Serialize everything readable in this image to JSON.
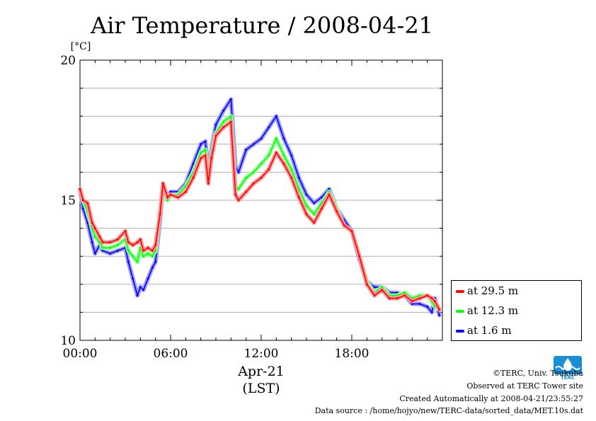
{
  "chart_data": {
    "type": "line",
    "title": "Air Temperature / 2008-04-21",
    "ylabel": "[°C]",
    "xlabel": "Apr-21",
    "xlabel2": "(LST)",
    "xlim": [
      0,
      24
    ],
    "ylim": [
      10,
      20
    ],
    "yticks": [
      10,
      15,
      20
    ],
    "ytick_labels": [
      "10",
      "15",
      "20"
    ],
    "xticks": [
      0,
      6,
      12,
      18
    ],
    "xtick_labels": [
      "00:00",
      "06:00",
      "12:00",
      "18:00"
    ],
    "grid": true,
    "legend_placement": "outside-right-bottom",
    "series": [
      {
        "name": "at 29.5 m",
        "color": "#ff0000",
        "x": [
          0,
          0.2,
          0.5,
          0.8,
          1.0,
          1.3,
          1.5,
          2.0,
          2.5,
          3.0,
          3.2,
          3.5,
          3.8,
          4.0,
          4.2,
          4.5,
          4.8,
          5.0,
          5.3,
          5.5,
          5.8,
          6.0,
          6.5,
          7.0,
          7.5,
          8.0,
          8.3,
          8.5,
          8.7,
          9.0,
          9.5,
          10.0,
          10.3,
          10.5,
          11.0,
          11.5,
          12.0,
          12.5,
          13.0,
          13.5,
          14.0,
          14.5,
          15.0,
          15.5,
          16.0,
          16.5,
          17.0,
          17.5,
          18.0,
          18.5,
          19.0,
          19.5,
          20.0,
          20.5,
          21.0,
          21.5,
          22.0,
          22.5,
          23.0,
          23.3,
          23.5,
          23.8
        ],
        "values": [
          15.4,
          15.0,
          14.9,
          14.2,
          14.0,
          13.7,
          13.5,
          13.5,
          13.6,
          13.9,
          13.5,
          13.4,
          13.5,
          13.6,
          13.2,
          13.3,
          13.2,
          13.4,
          14.5,
          15.6,
          15.1,
          15.2,
          15.1,
          15.3,
          15.8,
          16.5,
          16.6,
          15.6,
          16.5,
          17.3,
          17.6,
          17.8,
          15.2,
          15.0,
          15.3,
          15.6,
          15.8,
          16.1,
          16.7,
          16.3,
          15.8,
          15.1,
          14.5,
          14.2,
          14.7,
          15.2,
          14.6,
          14.1,
          13.9,
          13.0,
          12.0,
          11.6,
          11.8,
          11.5,
          11.5,
          11.6,
          11.4,
          11.5,
          11.6,
          11.5,
          11.4,
          11.1
        ]
      },
      {
        "name": "at 12.3 m",
        "color": "#00ff00",
        "x": [
          0,
          0.2,
          0.5,
          0.8,
          1.0,
          1.3,
          1.5,
          2.0,
          2.5,
          3.0,
          3.2,
          3.5,
          3.8,
          4.0,
          4.2,
          4.5,
          4.8,
          5.0,
          5.3,
          5.5,
          5.8,
          6.0,
          6.5,
          7.0,
          7.5,
          8.0,
          8.3,
          8.5,
          8.7,
          9.0,
          9.5,
          10.0,
          10.3,
          10.5,
          11.0,
          11.5,
          12.0,
          12.5,
          13.0,
          13.5,
          14.0,
          14.5,
          15.0,
          15.5,
          16.0,
          16.5,
          17.0,
          17.5,
          18.0,
          18.5,
          19.0,
          19.5,
          20.0,
          20.5,
          21.0,
          21.5,
          22.0,
          22.5,
          23.0,
          23.3,
          23.5,
          23.8
        ],
        "values": [
          15.4,
          15.0,
          14.6,
          14.0,
          13.7,
          13.5,
          13.3,
          13.3,
          13.4,
          13.6,
          13.2,
          13.0,
          12.8,
          13.3,
          13.0,
          13.1,
          13.0,
          13.2,
          14.5,
          15.5,
          15.0,
          15.2,
          15.2,
          15.5,
          16.0,
          16.7,
          16.8,
          15.7,
          16.6,
          17.4,
          17.8,
          18.0,
          15.5,
          15.4,
          15.8,
          16.0,
          16.3,
          16.6,
          17.2,
          16.6,
          16.1,
          15.4,
          14.8,
          14.5,
          14.9,
          15.3,
          14.7,
          14.1,
          13.9,
          13.0,
          12.1,
          11.7,
          11.9,
          11.6,
          11.6,
          11.7,
          11.5,
          11.6,
          11.6,
          11.4,
          11.2,
          11.1
        ]
      },
      {
        "name": "at 1.6 m",
        "color": "#0000ff",
        "x": [
          0,
          0.2,
          0.5,
          0.8,
          1.0,
          1.3,
          1.5,
          2.0,
          2.5,
          3.0,
          3.2,
          3.5,
          3.8,
          4.0,
          4.2,
          4.5,
          4.8,
          5.0,
          5.3,
          5.5,
          5.8,
          6.0,
          6.5,
          7.0,
          7.5,
          8.0,
          8.3,
          8.5,
          8.7,
          9.0,
          9.5,
          10.0,
          10.3,
          10.5,
          11.0,
          11.5,
          12.0,
          12.5,
          13.0,
          13.5,
          14.0,
          14.5,
          15.0,
          15.5,
          16.0,
          16.5,
          17.0,
          17.5,
          18.0,
          18.5,
          19.0,
          19.5,
          20.0,
          20.5,
          21.0,
          21.5,
          22.0,
          22.5,
          23.0,
          23.3,
          23.5,
          23.8
        ],
        "values": [
          15.4,
          14.7,
          14.2,
          13.5,
          13.1,
          13.4,
          13.2,
          13.1,
          13.2,
          13.3,
          12.8,
          12.2,
          11.6,
          11.9,
          11.8,
          12.2,
          12.6,
          12.8,
          14.3,
          15.5,
          15.0,
          15.3,
          15.3,
          15.6,
          16.3,
          17.0,
          17.1,
          16.0,
          16.8,
          17.7,
          18.2,
          18.6,
          16.2,
          16.0,
          16.8,
          17.0,
          17.2,
          17.6,
          18.0,
          17.2,
          16.6,
          15.8,
          15.2,
          14.9,
          15.1,
          15.4,
          14.7,
          14.3,
          13.9,
          12.9,
          12.1,
          11.9,
          11.9,
          11.7,
          11.7,
          11.6,
          11.3,
          11.3,
          11.2,
          11.0,
          11.5,
          10.9
        ]
      }
    ]
  },
  "footer": {
    "copyright": "©TERC, Univ. Tsukuba",
    "site": "Observed at TERC Tower site",
    "created": "Created Automatically at 2008-04-21/23:55:27",
    "source": "Data source : /home/hojyo/new/TERC-data/sorted_data/MET.10s.dat"
  },
  "logo": {
    "icon": "terc-logo-icon",
    "text": "TERC",
    "color": "#1a8fd8"
  }
}
